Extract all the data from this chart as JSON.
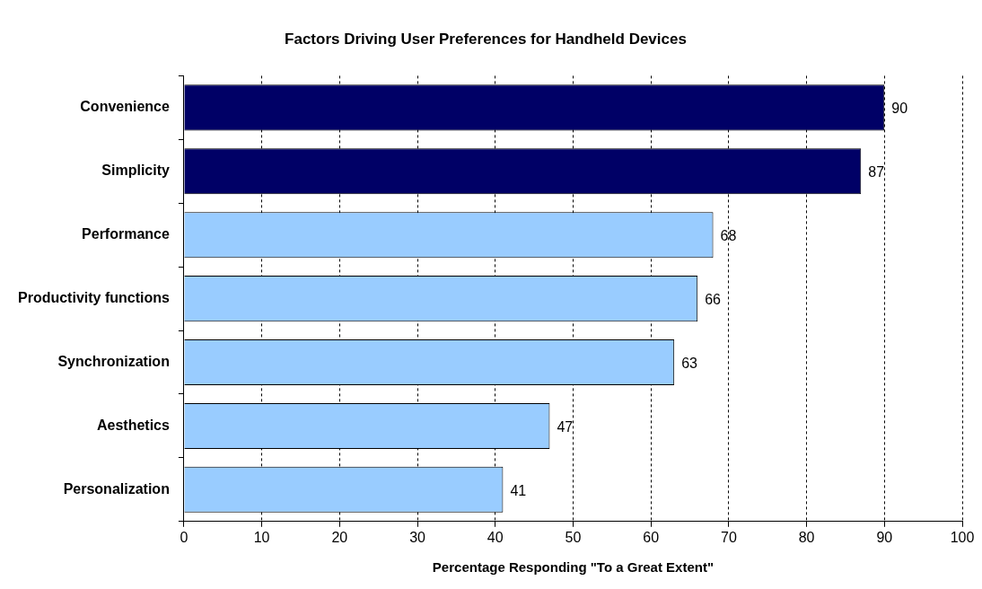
{
  "chart_data": {
    "type": "bar",
    "orientation": "horizontal",
    "title": "Factors Driving User Preferences for Handheld Devices",
    "xlabel": "Percentage Responding \"To a Great Extent\"",
    "categories": [
      "Convenience",
      "Simplicity",
      "Performance",
      "Productivity functions",
      "Synchronization",
      "Aesthetics",
      "Personalization"
    ],
    "values": [
      90,
      87,
      68,
      66,
      63,
      47,
      41
    ],
    "colors": [
      "#000066",
      "#000066",
      "#99ccff",
      "#99ccff",
      "#99ccff",
      "#99ccff",
      "#99ccff"
    ],
    "xlim": [
      0,
      100
    ],
    "xticks": [
      0,
      10,
      20,
      30,
      40,
      50,
      60,
      70,
      80,
      90,
      100
    ],
    "grid": "x",
    "data_labels": true
  }
}
